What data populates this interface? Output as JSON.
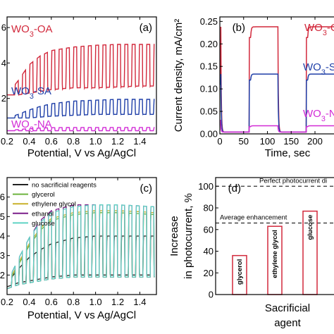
{
  "chart_data": [
    {
      "panel": "(a)",
      "type": "line",
      "xlabel": "Potential, V vs Ag/AgCl",
      "ylabel": "",
      "xlim": [
        0.2,
        1.55
      ],
      "ylim": [
        0,
        6.6
      ],
      "xticks": [
        "0.2",
        "0.4",
        "0.6",
        "0.8",
        "1.0",
        "1.2",
        "1.4"
      ],
      "yticks": [
        "2",
        "4",
        "6"
      ],
      "tick_values_x": [
        0.2,
        0.4,
        0.6,
        0.8,
        1.0,
        1.2,
        1.4
      ],
      "tick_values_y": [
        2,
        4,
        6
      ],
      "chopped": {
        "onset": 0.27,
        "period": 0.066,
        "duty": 0.5
      },
      "series": [
        {
          "name": "WO3-OA",
          "label_main": "WO",
          "label_sub": "3",
          "label_rest": "-OA",
          "color": "#d2293c",
          "x": [
            0.2,
            0.3,
            0.4,
            0.5,
            0.6,
            0.8,
            1.0,
            1.2,
            1.4,
            1.53
          ],
          "dark": [
            2.2,
            2.2,
            2.3,
            2.4,
            2.5,
            2.6,
            2.6,
            2.65,
            2.7,
            2.7
          ],
          "light": [
            2.2,
            3.0,
            3.9,
            4.4,
            4.7,
            4.9,
            5.0,
            5.05,
            5.05,
            5.05
          ]
        },
        {
          "name": "WO3-SA",
          "label_main": "WO",
          "label_sub": "3",
          "label_rest": "-SA",
          "color": "#1f3fa8",
          "x": [
            0.2,
            0.3,
            0.4,
            0.5,
            0.6,
            0.8,
            1.0,
            1.2,
            1.4,
            1.53
          ],
          "dark": [
            0.9,
            0.9,
            0.9,
            0.95,
            1.0,
            1.05,
            1.1,
            1.1,
            1.1,
            1.1
          ],
          "light": [
            0.9,
            1.1,
            1.35,
            1.55,
            1.7,
            1.85,
            1.9,
            1.95,
            1.95,
            1.95
          ]
        },
        {
          "name": "WO3-NA",
          "label_main": "WO",
          "label_sub": "3",
          "label_rest": "-NA",
          "color": "#d22bd6",
          "x": [
            0.2,
            0.3,
            0.4,
            0.5,
            0.6,
            0.8,
            1.0,
            1.2,
            1.4,
            1.53
          ],
          "dark": [
            0.18,
            0.18,
            0.18,
            0.18,
            0.18,
            0.18,
            0.18,
            0.18,
            0.18,
            0.18
          ],
          "light": [
            0.18,
            0.24,
            0.3,
            0.33,
            0.35,
            0.36,
            0.36,
            0.36,
            0.36,
            0.36
          ]
        }
      ]
    },
    {
      "panel": "(b)",
      "type": "line",
      "xlabel": "Time, sec",
      "ylabel": "Current density, mA/cm²",
      "xlim": [
        0,
        240
      ],
      "ylim": [
        0,
        0.26
      ],
      "xticks": [
        "0",
        "50",
        "100",
        "150",
        "200"
      ],
      "yticks": [
        "0.00",
        "0.05",
        "0.10",
        "0.15",
        "0.20",
        "0.25"
      ],
      "tick_values_x": [
        0,
        50,
        100,
        150,
        200
      ],
      "tick_values_y": [
        0,
        0.05,
        0.1,
        0.15,
        0.2,
        0.25
      ],
      "light_on": [
        [
          0,
          2
        ],
        [
          62,
          122
        ],
        [
          182,
          240
        ]
      ],
      "series": [
        {
          "name": "WO3-OA",
          "label_main": "WO",
          "label_sub": "3",
          "label_rest": "-O",
          "color": "#d2293c",
          "plateau": 0.238,
          "start": 0.13
        },
        {
          "name": "WO3-SA",
          "label_main": "WO",
          "label_sub": "3",
          "label_rest": "-S",
          "color": "#1f3fa8",
          "plateau": 0.133,
          "start": 0.11
        },
        {
          "name": "WO3-NA",
          "label_main": "WO",
          "label_sub": "3",
          "label_rest": "-N",
          "color": "#d22bd6",
          "plateau": 0.018,
          "start": 0.03
        }
      ]
    },
    {
      "panel": "(c)",
      "type": "line",
      "xlabel": "Potential, V vs Ag/AgCl",
      "ylabel": "",
      "xlim": [
        0.2,
        1.55
      ],
      "ylim": [
        0,
        7.0
      ],
      "xticks": [
        "0.2",
        "0.4",
        "0.6",
        "0.8",
        "1.0",
        "1.2",
        "1.4"
      ],
      "yticks": [
        "2",
        "3",
        "4",
        "5",
        "6"
      ],
      "tick_values_x": [
        0.2,
        0.4,
        0.6,
        0.8,
        1.0,
        1.2,
        1.4
      ],
      "tick_values_y": [
        2,
        3,
        4,
        5,
        6
      ],
      "chopped": {
        "onset": 0.24,
        "period": 0.066,
        "duty": 0.5
      },
      "series": [
        {
          "name": "no sacrificial reagents",
          "color": "#222222",
          "x": [
            0.2,
            0.3,
            0.4,
            0.5,
            0.6,
            0.8,
            1.0,
            1.2,
            1.4,
            1.53
          ],
          "dark": [
            1.4,
            1.6,
            1.7,
            1.8,
            1.9,
            2.0,
            2.0,
            2.0,
            2.0,
            2.0
          ],
          "light": [
            1.6,
            2.3,
            2.9,
            3.3,
            3.6,
            3.9,
            4.0,
            4.0,
            4.0,
            4.0
          ]
        },
        {
          "name": "glycerol",
          "color": "#6db33f",
          "x": [
            0.2,
            0.3,
            0.4,
            0.5,
            0.6,
            0.8,
            1.0,
            1.2,
            1.4,
            1.53
          ],
          "dark": [
            1.3,
            1.5,
            1.6,
            1.7,
            1.8,
            1.9,
            1.9,
            1.9,
            1.9,
            1.9
          ],
          "light": [
            1.5,
            2.5,
            3.5,
            4.3,
            4.8,
            5.1,
            5.2,
            5.2,
            5.15,
            5.1
          ]
        },
        {
          "name": "ethylene glycol",
          "color": "#c9b12a",
          "x": [
            0.2,
            0.3,
            0.4,
            0.5,
            0.6,
            0.8,
            1.0,
            1.2,
            1.4,
            1.53
          ],
          "dark": [
            1.3,
            1.5,
            1.6,
            1.7,
            1.8,
            1.9,
            1.9,
            1.9,
            1.9,
            1.9
          ],
          "light": [
            1.5,
            2.6,
            3.6,
            4.4,
            4.9,
            5.2,
            5.3,
            5.3,
            5.25,
            5.2
          ]
        },
        {
          "name": "ethanol",
          "color": "#7b1f8a",
          "x": [
            0.2,
            0.3,
            0.4,
            0.5,
            0.6,
            0.8,
            1.0,
            1.2,
            1.4,
            1.53
          ],
          "dark": [
            1.3,
            1.5,
            1.6,
            1.7,
            1.8,
            1.9,
            1.9,
            1.9,
            1.9,
            1.9
          ],
          "light": [
            1.6,
            2.8,
            3.9,
            4.8,
            5.3,
            5.6,
            5.6,
            5.6,
            5.55,
            5.5
          ]
        },
        {
          "name": "glucose",
          "color": "#5fd3c4",
          "x": [
            0.2,
            0.3,
            0.4,
            0.5,
            0.6,
            0.8,
            1.0,
            1.2,
            1.4,
            1.53
          ],
          "dark": [
            1.3,
            1.5,
            1.6,
            1.7,
            1.8,
            1.9,
            1.9,
            1.9,
            1.9,
            1.9
          ],
          "light": [
            1.6,
            2.8,
            3.9,
            4.7,
            5.2,
            5.5,
            5.6,
            5.6,
            5.55,
            5.5
          ]
        }
      ]
    },
    {
      "panel": "(d)",
      "type": "bar",
      "xlabel": "Sacrificial agent",
      "xlabel_line1": "Sacrificial",
      "xlabel_line2": "agent",
      "ylabel": "Increase in photocurrent, %",
      "ylabel_line1": "Increase",
      "ylabel_line2": "in photocurrent, %",
      "ylim": [
        0,
        108
      ],
      "yticks": [
        "0",
        "20",
        "40",
        "60",
        "80",
        "100"
      ],
      "tick_values_y": [
        0,
        20,
        40,
        60,
        80,
        100
      ],
      "categories": [
        "glycerol",
        "ethylene glycol",
        "glucose"
      ],
      "values": [
        36,
        63,
        77
      ],
      "bar_color": "#d2293c",
      "reference_lines": [
        {
          "value": 100,
          "label": "Perfect photocurrent di"
        },
        {
          "value": 66,
          "label": "Average enhancement"
        }
      ]
    }
  ]
}
